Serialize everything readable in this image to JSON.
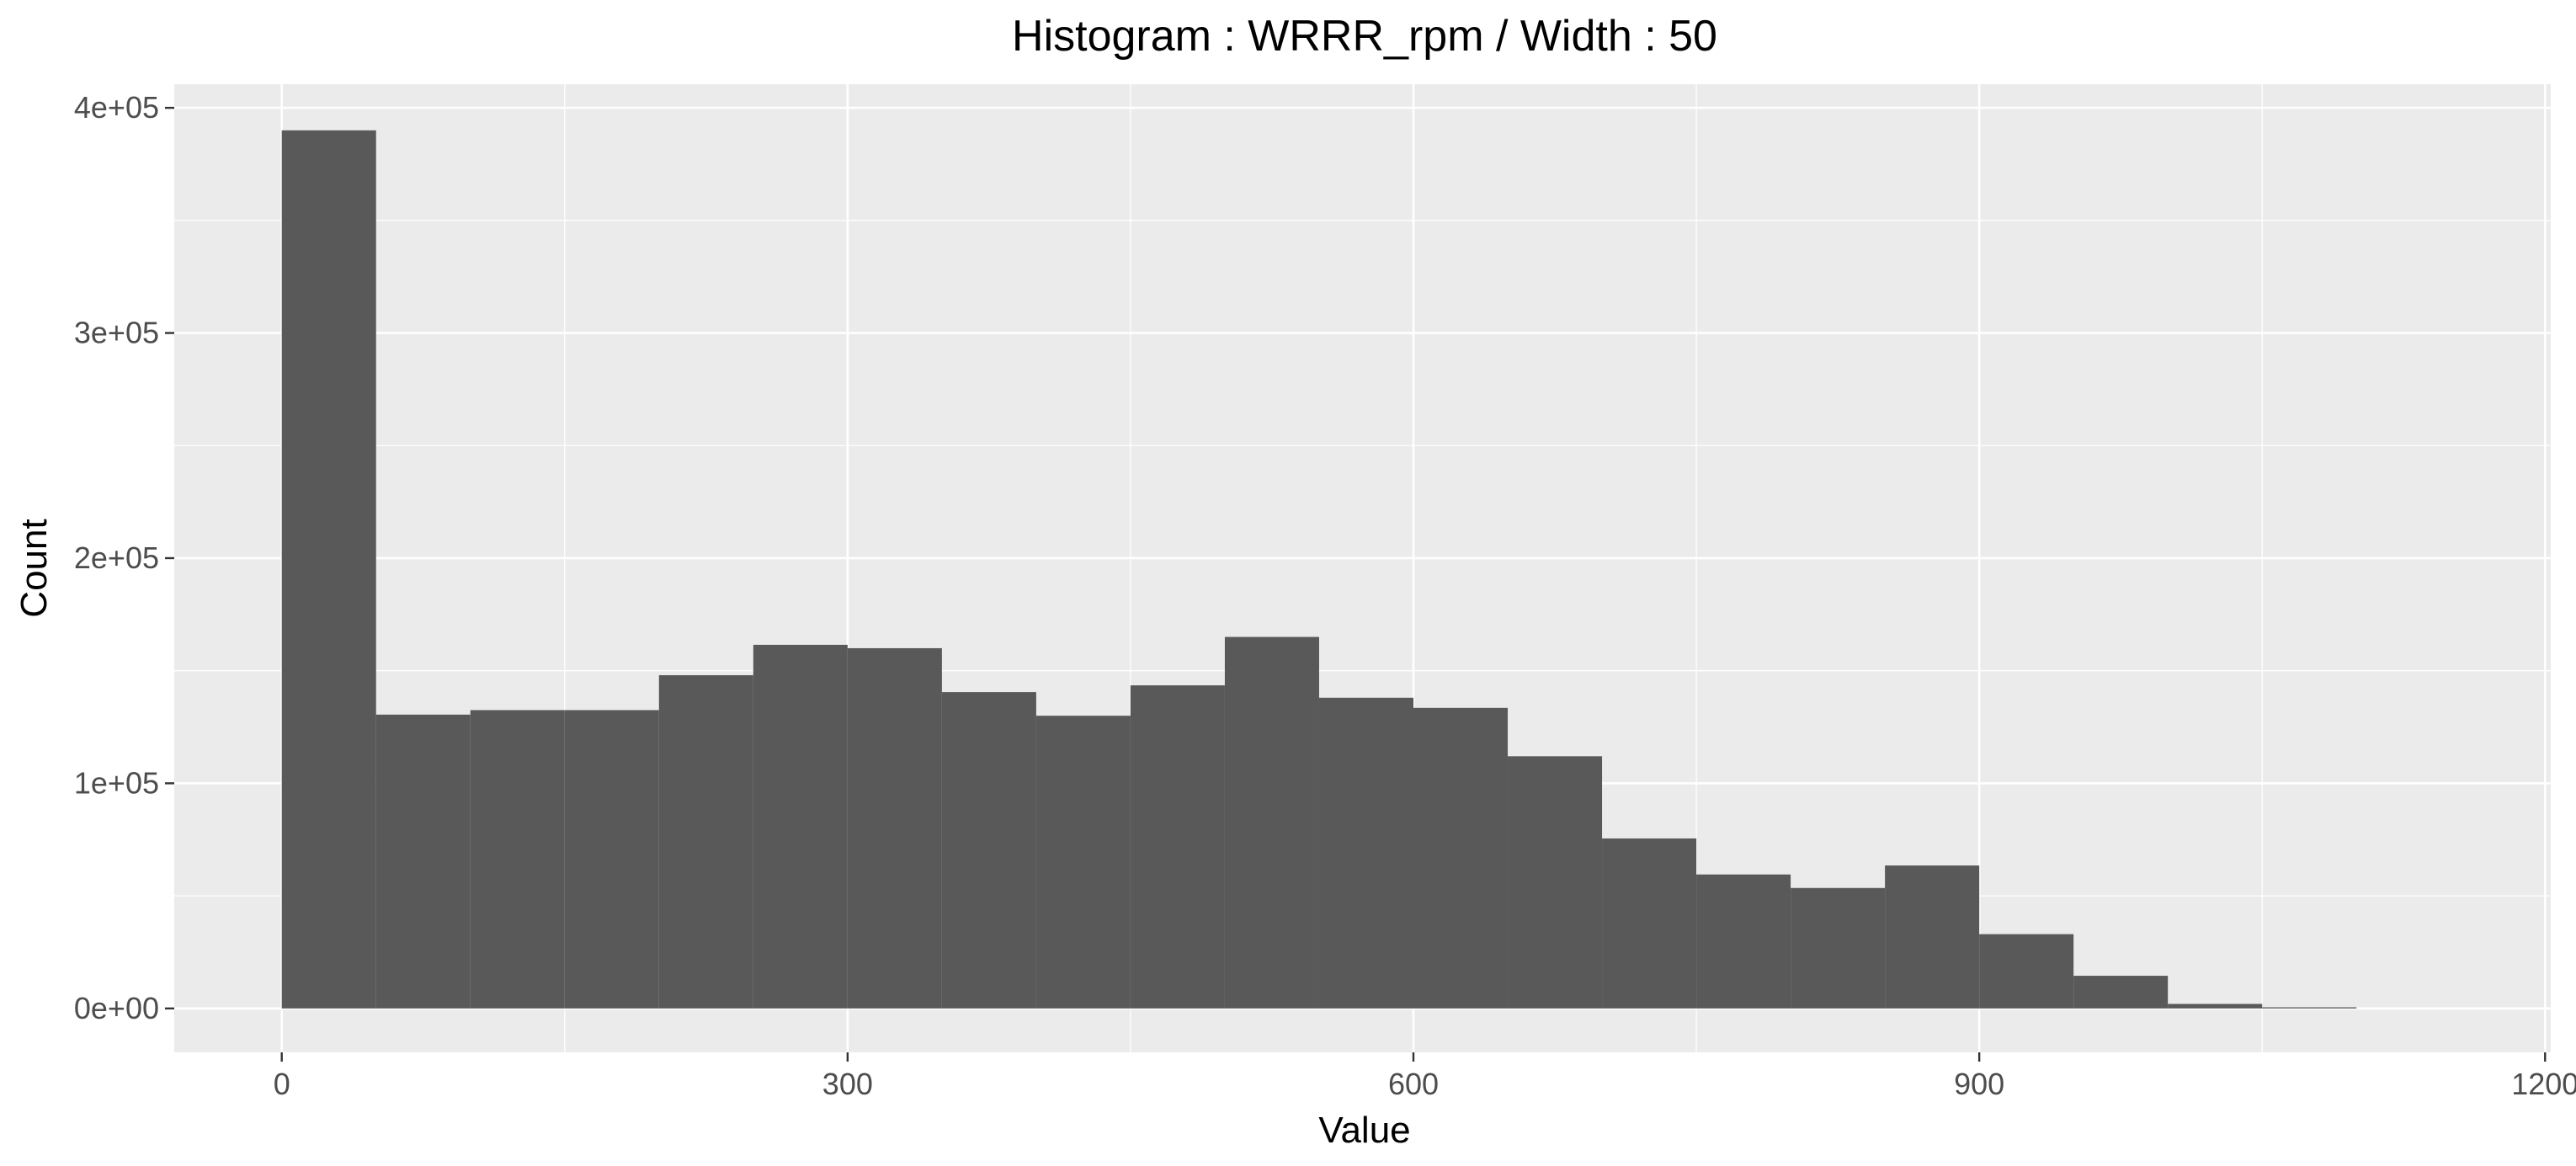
{
  "chart_data": {
    "type": "bar",
    "title": "Histogram : WRRR_rpm / Width : 50",
    "xlabel": "Value",
    "ylabel": "Count",
    "bin_width": 50,
    "bins": [
      {
        "x0": 0,
        "x1": 50,
        "count": 390000
      },
      {
        "x0": 50,
        "x1": 100,
        "count": 130500
      },
      {
        "x0": 100,
        "x1": 150,
        "count": 132500
      },
      {
        "x0": 150,
        "x1": 200,
        "count": 132500
      },
      {
        "x0": 200,
        "x1": 250,
        "count": 148000
      },
      {
        "x0": 250,
        "x1": 300,
        "count": 161500
      },
      {
        "x0": 300,
        "x1": 350,
        "count": 160000
      },
      {
        "x0": 350,
        "x1": 400,
        "count": 140500
      },
      {
        "x0": 400,
        "x1": 450,
        "count": 130000
      },
      {
        "x0": 450,
        "x1": 500,
        "count": 143500
      },
      {
        "x0": 500,
        "x1": 550,
        "count": 165000
      },
      {
        "x0": 550,
        "x1": 600,
        "count": 138000
      },
      {
        "x0": 600,
        "x1": 650,
        "count": 133500
      },
      {
        "x0": 650,
        "x1": 700,
        "count": 112000
      },
      {
        "x0": 700,
        "x1": 750,
        "count": 75500
      },
      {
        "x0": 750,
        "x1": 800,
        "count": 59500
      },
      {
        "x0": 800,
        "x1": 850,
        "count": 53500
      },
      {
        "x0": 850,
        "x1": 900,
        "count": 63500
      },
      {
        "x0": 900,
        "x1": 950,
        "count": 33000
      },
      {
        "x0": 950,
        "x1": 1000,
        "count": 14500
      },
      {
        "x0": 1000,
        "x1": 1050,
        "count": 2000
      },
      {
        "x0": 1050,
        "x1": 1100,
        "count": 500
      }
    ],
    "xlim": [
      -57,
      1203
    ],
    "ylim": [
      -19500,
      410500
    ],
    "xticks": [
      0,
      300,
      600,
      900,
      1200
    ],
    "xtick_labels": [
      "0",
      "300",
      "600",
      "900",
      "1200"
    ],
    "yticks": [
      0,
      100000,
      200000,
      300000,
      400000
    ],
    "ytick_labels": [
      "0e+00",
      "1e+05",
      "2e+05",
      "3e+05",
      "4e+05"
    ],
    "grid": true,
    "legend": "none",
    "colors": {
      "panel_background": "#ebebeb",
      "grid": "#ffffff",
      "bar_fill": "#595959",
      "tick_label": "#4d4d4d",
      "title": "#000000"
    }
  }
}
